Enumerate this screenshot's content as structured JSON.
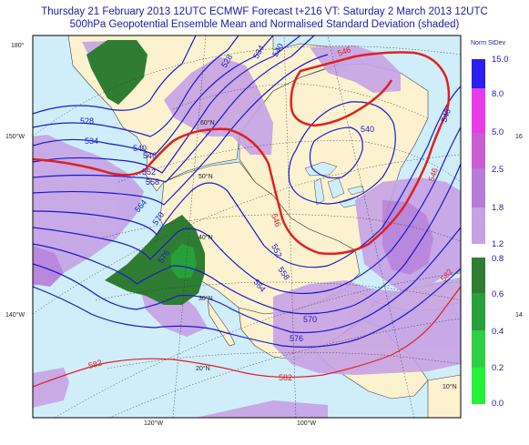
{
  "title_line1": "Thursday 21 February 2013 12UTC ECMWF Forecast t+216  VT: Saturday 2 March 2013 12UTC",
  "title_line2": "500hPa Geopotential Ensemble Mean and Normalised Standard Deviation (shaded)",
  "map": {
    "ocean_color": "#cfeefa",
    "land_color": "#fdf2cf",
    "graticule_labels": [
      "180°",
      "150°W",
      "140°W",
      "120°W",
      "100°W",
      "60°N",
      "50°N",
      "40°N",
      "30°N",
      "20°N",
      "10°N"
    ],
    "side_labels_right": [
      "16",
      "14"
    ],
    "contours_blue": [
      "528",
      "534",
      "540",
      "546",
      "552",
      "558",
      "564",
      "570",
      "576",
      "528",
      "534",
      "540",
      "540",
      "546",
      "552",
      "558",
      "564",
      "570",
      "576"
    ],
    "contours_red": [
      "546",
      "546",
      "546",
      "582",
      "582",
      "582"
    ]
  },
  "legend": {
    "title": "Norm StDev",
    "upper": [
      {
        "label": "15.0",
        "color": "#2a1ef0"
      },
      {
        "label": "8.0",
        "color": "#e83ce8"
      },
      {
        "label": "5.0",
        "color": "#c85cd0"
      },
      {
        "label": "2.5",
        "color": "#b57dd8"
      },
      {
        "label": "1.8",
        "color": "#c6a2e4"
      },
      {
        "label": "1.2",
        "color": ""
      }
    ],
    "lower": [
      {
        "label": "0.8",
        "color": "#2e7d32"
      },
      {
        "label": "0.6",
        "color": "#27a03a"
      },
      {
        "label": "0.4",
        "color": "#2fcf45"
      },
      {
        "label": "0.2",
        "color": "#25f03a"
      },
      {
        "label": "0.0",
        "color": ""
      }
    ]
  }
}
